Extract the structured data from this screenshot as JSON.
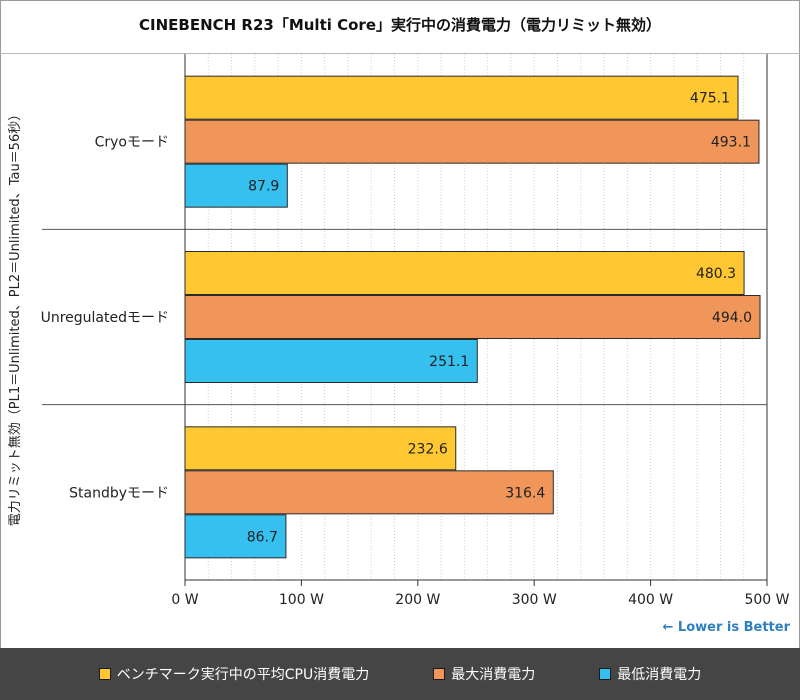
{
  "chart_data": {
    "type": "bar",
    "orientation": "horizontal",
    "title": "CINEBENCH R23「Multi Core」実行中の消費電力（電力リミット無効）",
    "ylabel": "電力リミット無効（PL1＝Unlimited、PL2＝Unlimited、Tau＝56秒）",
    "xlabel": "",
    "categories": [
      "Cryoモード",
      "Unregulatedモード",
      "Standbyモード"
    ],
    "series": [
      {
        "name": "ベンチマーク実行中の平均CPU消費電力",
        "color": "#FFC832",
        "values": [
          475.1,
          480.3,
          232.6
        ]
      },
      {
        "name": "最大消費電力",
        "color": "#F0965A",
        "values": [
          493.1,
          494.0,
          316.4
        ]
      },
      {
        "name": "最低消費電力",
        "color": "#35C0F0",
        "values": [
          87.9,
          251.1,
          86.7
        ]
      }
    ],
    "xlim": [
      0,
      500
    ],
    "xticks": [
      "0 W",
      "100 W",
      "200 W",
      "300 W",
      "400 W",
      "500 W"
    ],
    "annotation": "← Lower is Better",
    "legend_position": "bottom",
    "grid": true
  }
}
